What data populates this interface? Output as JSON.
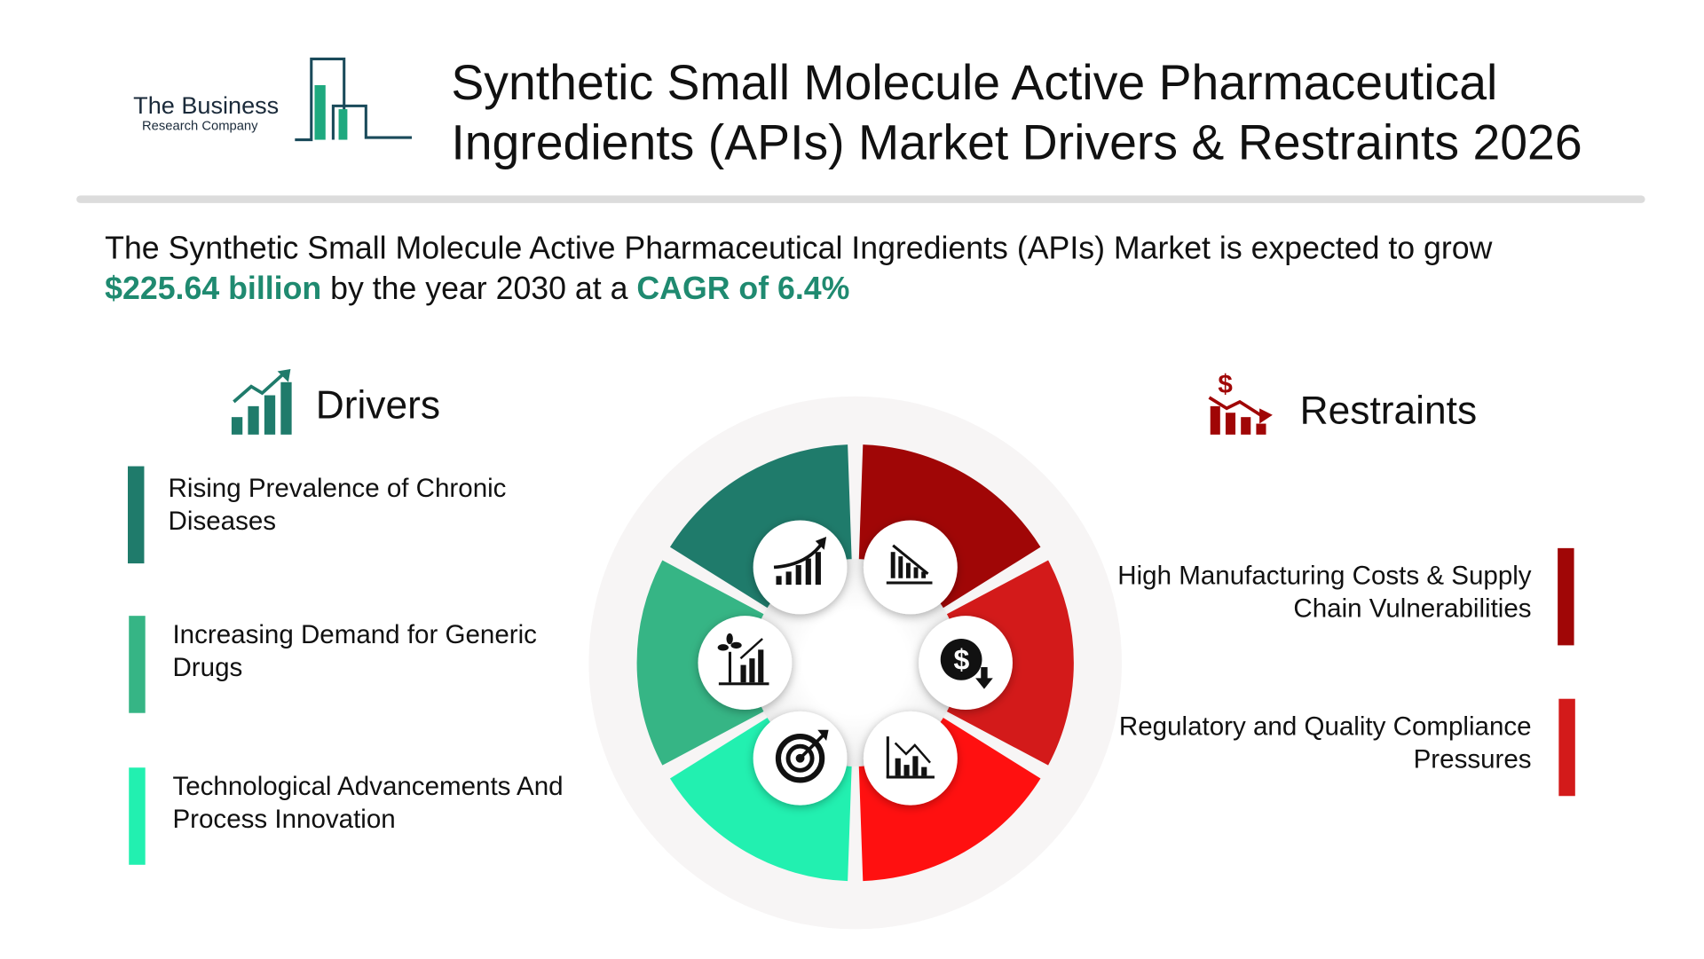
{
  "logo": {
    "line1": "The Business",
    "line2": "Research Company"
  },
  "title": {
    "line1": "Synthetic Small Molecule Active Pharmaceutical",
    "line2": "Ingredients (APIs) Market Drivers & Restraints 2026"
  },
  "summary": {
    "prefix": "The Synthetic Small Molecule Active Pharmaceutical Ingredients (APIs) Market is expected to grow",
    "value": "$225.64 billion",
    "middle": "by the year 2030 at a",
    "cagr": "CAGR of 6.4%"
  },
  "drivers": {
    "heading": "Drivers",
    "items": [
      {
        "line1": "Rising Prevalence of Chronic",
        "line2": "Diseases",
        "color": "#1f7b6b"
      },
      {
        "line1": "Increasing Demand for Generic",
        "line2": "Drugs",
        "color": "#36b585"
      },
      {
        "line1": "Technological Advancements And",
        "line2": "Process Innovation",
        "color": "#22f0b0"
      }
    ]
  },
  "restraints": {
    "heading": "Restraints",
    "items": [
      {
        "line1": "High Manufacturing Costs & Supply",
        "line2": "Chain Vulnerabilities",
        "color": "#a00606"
      },
      {
        "line1": "Regulatory and Quality Compliance",
        "line2": "Pressures",
        "color": "#d31a1a"
      }
    ]
  },
  "wheel": {
    "segments": [
      {
        "color": "#a00606",
        "icon": "declining-bar-chart-icon"
      },
      {
        "color": "#d31a1a",
        "icon": "dollar-down-icon"
      },
      {
        "color": "#ff1010",
        "icon": "chart-downtrend-icon"
      },
      {
        "color": "#22f0b0",
        "icon": "target-arrow-icon"
      },
      {
        "color": "#36b585",
        "icon": "plant-growth-chart-icon"
      },
      {
        "color": "#1f7b6b",
        "icon": "growth-chart-icon"
      }
    ]
  }
}
